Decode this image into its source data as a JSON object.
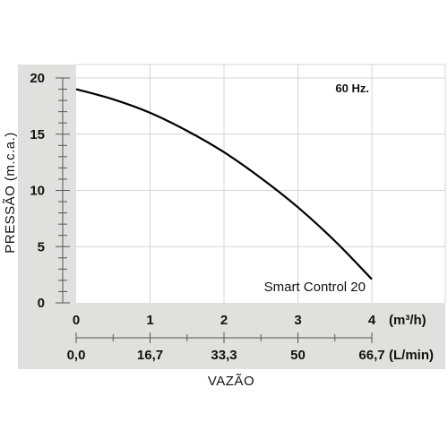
{
  "chart_data": {
    "type": "line",
    "ylabel": "PRESSÃO (m.c.a.)",
    "xlabel": "VAZÃO",
    "ylim": [
      0,
      20
    ],
    "xlim": [
      0,
      4
    ],
    "y_ticks": [
      "0",
      "5",
      "10",
      "15",
      "20"
    ],
    "x_ticks_primary": [
      "0",
      "1",
      "2",
      "3",
      "4"
    ],
    "x_unit_primary": "(m³/h)",
    "x_ticks_secondary": [
      "0,0",
      "16,7",
      "33,3",
      "50",
      "66,7"
    ],
    "x_unit_secondary": "(L/min)",
    "grid": true,
    "frequency_label": "60 Hz.",
    "series": [
      {
        "name": "Smart Control 20",
        "x": [
          0,
          0.5,
          1,
          1.5,
          2,
          2.5,
          3,
          3.5,
          4
        ],
        "y": [
          19,
          18.1,
          16.9,
          15.3,
          13.4,
          11.1,
          8.5,
          5.5,
          2.1
        ]
      }
    ],
    "colors": {
      "panel": "#e0e0df",
      "line": "#000000",
      "grid": "#d4d4d4"
    }
  }
}
